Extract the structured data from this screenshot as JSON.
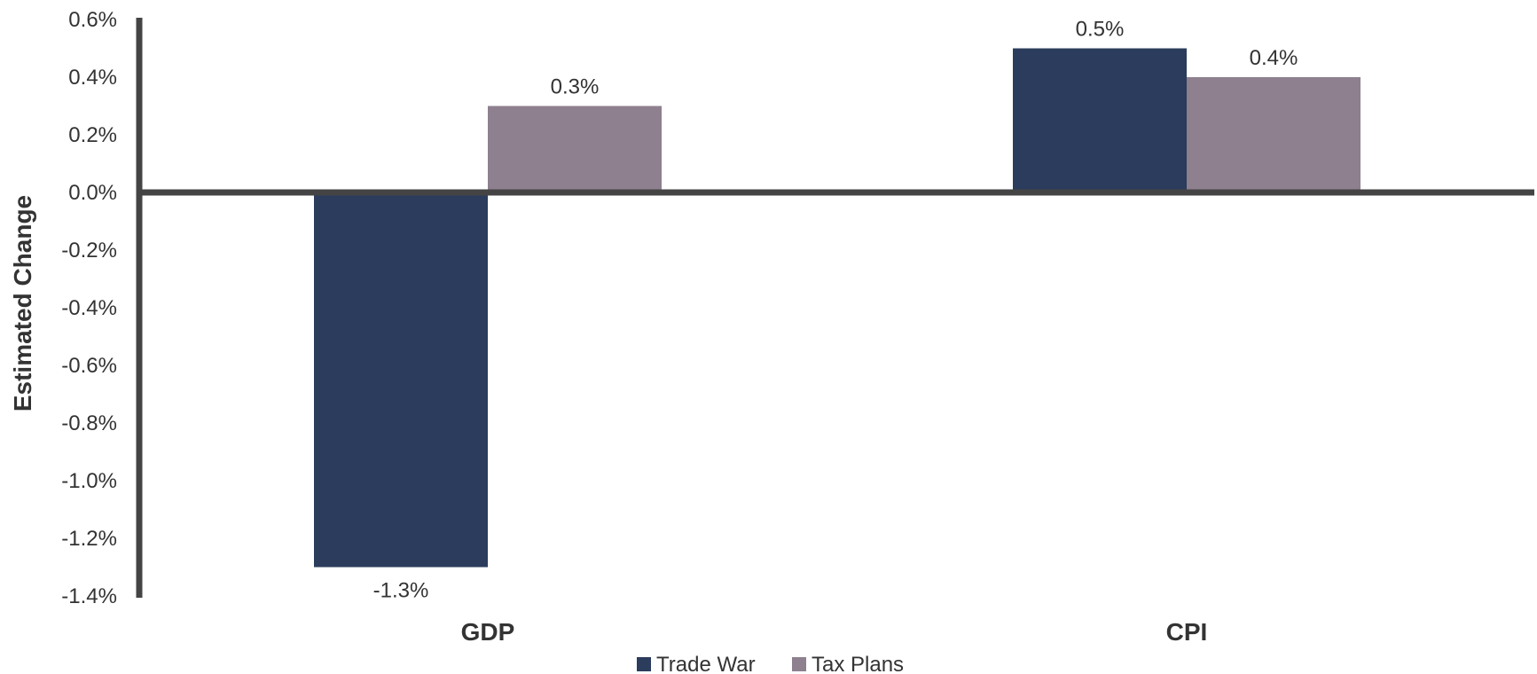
{
  "chart_data": {
    "type": "bar",
    "title": "",
    "xlabel": "",
    "ylabel": "Estimated Change",
    "categories": [
      "GDP",
      "CPI"
    ],
    "series": [
      {
        "name": "Trade War",
        "color": "#2b3c5c",
        "values": [
          -1.3,
          0.5
        ],
        "labels": [
          "-1.3%",
          "0.5%"
        ]
      },
      {
        "name": "Tax Plans",
        "color": "#8e808e",
        "values": [
          0.3,
          0.4
        ],
        "labels": [
          "0.3%",
          "0.4%"
        ]
      }
    ],
    "ylim": [
      -1.4,
      0.6
    ],
    "yticks": [
      "0.6%",
      "0.4%",
      "0.2%",
      "0.0%",
      "-0.2%",
      "-0.4%",
      "-0.6%",
      "-0.8%",
      "-1.0%",
      "-1.2%",
      "-1.4%"
    ],
    "ytick_values": [
      0.6,
      0.4,
      0.2,
      0.0,
      -0.2,
      -0.4,
      -0.6,
      -0.8,
      -1.0,
      -1.2,
      -1.4
    ],
    "grid": false,
    "legend_position": "bottom-center",
    "axis_color": "#444444"
  }
}
